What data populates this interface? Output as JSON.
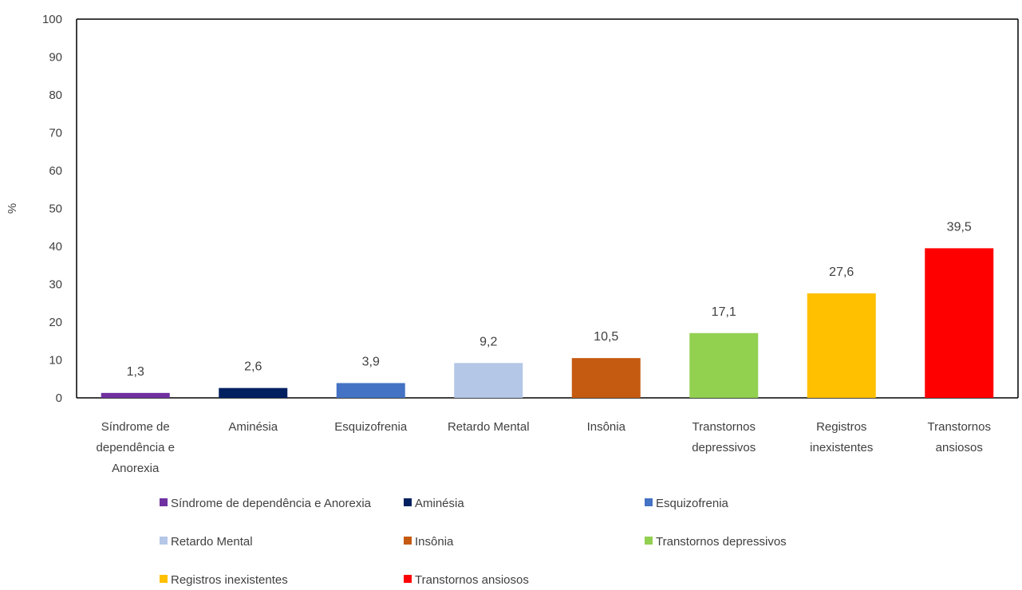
{
  "chart_data": {
    "type": "bar",
    "title": "",
    "xlabel": "",
    "ylabel": "%",
    "ylim": [
      0,
      100
    ],
    "yticks": [
      0,
      10,
      20,
      30,
      40,
      50,
      60,
      70,
      80,
      90,
      100
    ],
    "grid": false,
    "legend_position": "bottom",
    "categories": [
      "Síndrome de dependência e Anorexia",
      "Aminésia",
      "Esquizofrenia",
      "Retardo Mental",
      "Insônia",
      "Transtornos depressivos",
      "Registros inexistentes",
      "Transtornos ansiosos"
    ],
    "category_label_lines": [
      [
        "Síndrome de",
        "dependência e",
        "Anorexia"
      ],
      [
        "Aminésia"
      ],
      [
        "Esquizofrenia"
      ],
      [
        "Retardo Mental"
      ],
      [
        "Insônia"
      ],
      [
        "Transtornos",
        "depressivos"
      ],
      [
        "Registros",
        "inexistentes"
      ],
      [
        "Transtornos",
        "ansiosos"
      ]
    ],
    "values": [
      1.3,
      2.6,
      3.9,
      9.2,
      10.5,
      17.1,
      27.6,
      39.5
    ],
    "value_labels": [
      "1,3",
      "2,6",
      "3,9",
      "9,2",
      "10,5",
      "17,1",
      "27,6",
      "39,5"
    ],
    "colors": [
      "#7030A0",
      "#002060",
      "#4472C4",
      "#B4C7E7",
      "#C55A11",
      "#92D050",
      "#FFC000",
      "#FF0000"
    ]
  }
}
